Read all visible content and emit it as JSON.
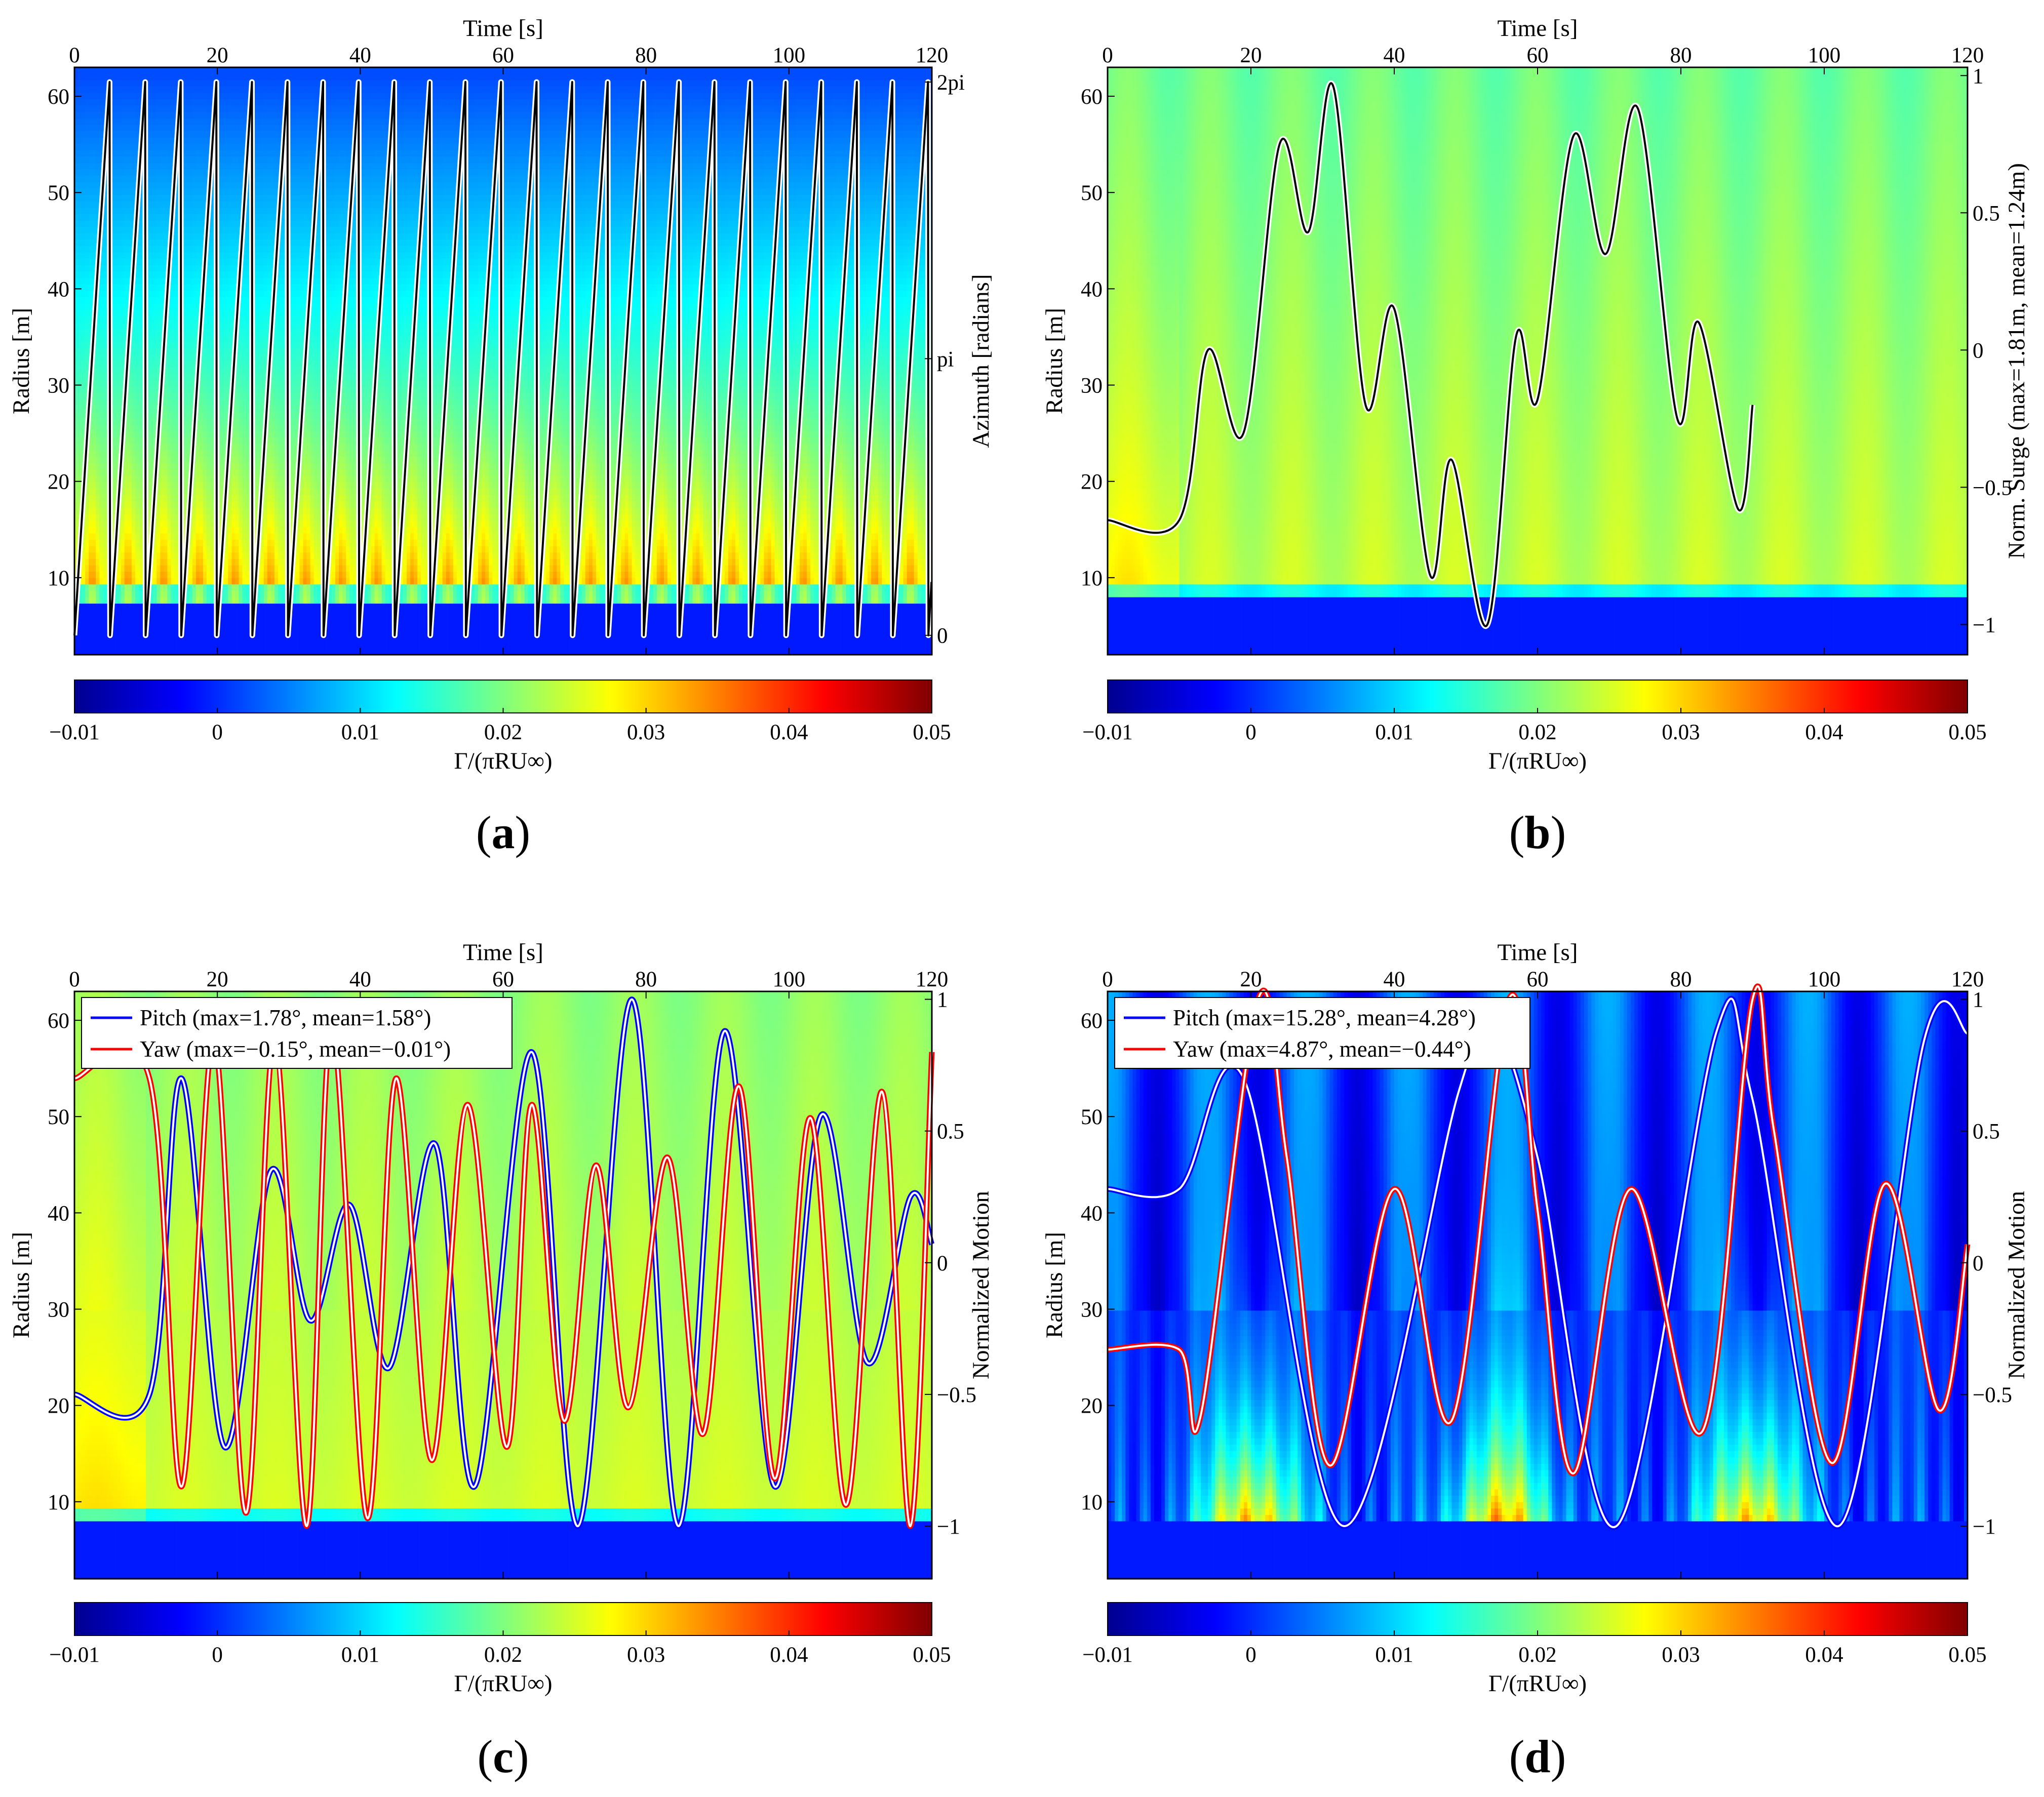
{
  "colormap": [
    "#00008f",
    "#0000ff",
    "#007fff",
    "#00ffff",
    "#7fff7f",
    "#ffff00",
    "#ff7f00",
    "#ff0000",
    "#7f0000"
  ],
  "line_colors": {
    "black": "#000000",
    "white": "#ffffff",
    "blue": "#0000ff",
    "red": "#ff0000"
  },
  "chart_data": [
    {
      "type": "heatmap",
      "panel_label": "(a)",
      "xlabel": "Time [s]",
      "ylabel": "Radius [m]",
      "y2label": "Azimuth [radians]",
      "xlim": [
        0,
        120
      ],
      "ylim": [
        2,
        63
      ],
      "y2lim": [
        -0.22,
        6.45
      ],
      "xticks": [
        0,
        20,
        40,
        60,
        80,
        100,
        120
      ],
      "yticks": [
        10,
        20,
        30,
        40,
        50,
        60
      ],
      "y2ticks": [
        {
          "value": 0,
          "label": "0"
        },
        {
          "value": 3.1416,
          "label": "pi"
        },
        {
          "value": 6.2832,
          "label": "2pi"
        }
      ],
      "field": {
        "pattern": "rotation",
        "root_radius": 8,
        "mean_hub": 0.028,
        "mean_tip": 0.004
      },
      "colorbar": {
        "label": "Γ/(πRU∞)",
        "range": [
          -0.01,
          0.05
        ],
        "ticks": [
          -0.01,
          0,
          0.01,
          0.02,
          0.03,
          0.04,
          0.05
        ]
      },
      "series": [
        {
          "name": "Azimuth",
          "style": "black-white",
          "type": "sawtooth",
          "start": 0,
          "end": 120,
          "period": 4.98,
          "min": 0,
          "max": 6.2832
        }
      ]
    },
    {
      "type": "heatmap",
      "panel_label": "(b)",
      "xlabel": "Time [s]",
      "ylabel": "Radius [m]",
      "y2label": "Norm. Surge (max=1.81m, mean=1.24m)",
      "xlim": [
        0,
        120
      ],
      "ylim": [
        2,
        63
      ],
      "y2lim": [
        -1.11,
        1.03
      ],
      "xticks": [
        0,
        20,
        40,
        60,
        80,
        100,
        120
      ],
      "yticks": [
        10,
        20,
        30,
        40,
        50,
        60
      ],
      "y2ticks": [
        {
          "value": 1,
          "label": "1"
        },
        {
          "value": 0.5,
          "label": "0.5"
        },
        {
          "value": 0,
          "label": "0"
        },
        {
          "value": -0.5,
          "label": "-0.5"
        },
        {
          "value": -1,
          "label": "-1"
        }
      ],
      "field": {
        "pattern": "surge",
        "root_radius": 8.5,
        "mean_hub": 0.024,
        "mean_tip": 0.019
      },
      "colorbar": {
        "label": "Γ/(πRU∞)",
        "range": [
          -0.01,
          0.05
        ],
        "ticks": [
          -0.01,
          0,
          0.01,
          0.02,
          0.03,
          0.04,
          0.05
        ]
      },
      "series": [
        {
          "name": "Surge",
          "style": "black-white",
          "points": [
            [
              0,
              -0.62
            ],
            [
              10,
              -0.62
            ],
            [
              14,
              0
            ],
            [
              19,
              -0.3
            ],
            [
              24,
              0.75
            ],
            [
              28,
              0.43
            ],
            [
              31.5,
              0.96
            ],
            [
              36,
              -0.2
            ],
            [
              40,
              0.15
            ],
            [
              45,
              -0.82
            ],
            [
              48,
              -0.4
            ],
            [
              53,
              -1.0
            ],
            [
              57,
              0.05
            ],
            [
              60,
              -0.18
            ],
            [
              65,
              0.78
            ],
            [
              69.5,
              0.35
            ],
            [
              74,
              0.88
            ],
            [
              79.5,
              -0.25
            ],
            [
              82.5,
              0.1
            ],
            [
              88,
              -0.58
            ],
            [
              90,
              -0.2
            ]
          ]
        }
      ]
    },
    {
      "type": "heatmap",
      "panel_label": "(c)",
      "xlabel": "Time [s]",
      "ylabel": "Radius [m]",
      "y2label": "Normalized Motion",
      "xlim": [
        0,
        120
      ],
      "ylim": [
        2,
        63
      ],
      "y2lim": [
        -1.2,
        1.03
      ],
      "xticks": [
        0,
        20,
        40,
        60,
        80,
        100,
        120
      ],
      "yticks": [
        10,
        20,
        30,
        40,
        50,
        60
      ],
      "y2ticks": [
        {
          "value": 1,
          "label": "1"
        },
        {
          "value": 0.5,
          "label": "0.5"
        },
        {
          "value": 0,
          "label": "0"
        },
        {
          "value": -0.5,
          "label": "-0.5"
        },
        {
          "value": -1,
          "label": "-1"
        }
      ],
      "field": {
        "pattern": "uniform",
        "root_radius": 8.5,
        "mean_hub": 0.025,
        "mean_tip": 0.021
      },
      "colorbar": {
        "label": "Γ/(πRU∞)",
        "range": [
          -0.01,
          0.05
        ],
        "ticks": [
          -0.01,
          0,
          0.01,
          0.02,
          0.03,
          0.04,
          0.05
        ]
      },
      "legend": {
        "location": "top-left",
        "entries": [
          {
            "name": "Pitch (max=1.78°, mean=1.58°)",
            "color": "#0000ff"
          },
          {
            "name": "Yaw (max=−0.15°, mean=−0.01°)",
            "color": "#ff0000"
          }
        ]
      },
      "series": [
        {
          "name": "Pitch",
          "style": "blue-white",
          "points": [
            [
              0,
              -0.5
            ],
            [
              10.5,
              -0.5
            ],
            [
              15,
              0.7
            ],
            [
              21,
              -0.7
            ],
            [
              27.5,
              0.35
            ],
            [
              33,
              -0.22
            ],
            [
              38.5,
              0.22
            ],
            [
              44,
              -0.4
            ],
            [
              50.5,
              0.45
            ],
            [
              56,
              -0.85
            ],
            [
              64,
              0.8
            ],
            [
              70.5,
              -1.0
            ],
            [
              78,
              1.0
            ],
            [
              84.5,
              -1.0
            ],
            [
              91,
              0.88
            ],
            [
              98,
              -0.85
            ],
            [
              104.5,
              0.56
            ],
            [
              111,
              -0.38
            ],
            [
              117,
              0.25
            ],
            [
              120,
              0.07
            ]
          ]
        },
        {
          "name": "Yaw",
          "style": "red-white",
          "points": [
            [
              0,
              0.7
            ],
            [
              10.5,
              0.7
            ],
            [
              15,
              -0.85
            ],
            [
              19.5,
              0.85
            ],
            [
              24,
              -0.95
            ],
            [
              28,
              0.85
            ],
            [
              32.5,
              -1.0
            ],
            [
              36,
              0.9
            ],
            [
              41,
              -0.97
            ],
            [
              45,
              0.7
            ],
            [
              50,
              -0.75
            ],
            [
              55,
              0.6
            ],
            [
              60.5,
              -0.7
            ],
            [
              64,
              0.6
            ],
            [
              68.5,
              -0.6
            ],
            [
              73,
              0.37
            ],
            [
              77.5,
              -0.55
            ],
            [
              83,
              0.4
            ],
            [
              88,
              -0.65
            ],
            [
              93,
              0.67
            ],
            [
              98,
              -0.82
            ],
            [
              103,
              0.55
            ],
            [
              108,
              -0.92
            ],
            [
              113,
              0.65
            ],
            [
              117,
              -1.0
            ],
            [
              120,
              0.8
            ]
          ]
        }
      ]
    },
    {
      "type": "heatmap",
      "panel_label": "(d)",
      "xlabel": "Time [s]",
      "ylabel": "Radius [m]",
      "y2label": "Normalized Motion",
      "xlim": [
        0,
        120
      ],
      "ylim": [
        2,
        63
      ],
      "y2lim": [
        -1.2,
        1.03
      ],
      "xticks": [
        0,
        20,
        40,
        60,
        80,
        100,
        120
      ],
      "yticks": [
        10,
        20,
        30,
        40,
        50,
        60
      ],
      "y2ticks": [
        {
          "value": 1,
          "label": "1"
        },
        {
          "value": 0.5,
          "label": "0.5"
        },
        {
          "value": 0,
          "label": "0"
        },
        {
          "value": -0.5,
          "label": "-0.5"
        },
        {
          "value": -1,
          "label": "-1"
        }
      ],
      "field": {
        "pattern": "gust",
        "root_radius": 8.5,
        "mean_hub": 0.015,
        "mean_tip": 0.002
      },
      "colorbar": {
        "label": "Γ/(πRU∞)",
        "range": [
          -0.01,
          0.05
        ],
        "ticks": [
          -0.01,
          0,
          0.01,
          0.02,
          0.03,
          0.04,
          0.05
        ]
      },
      "legend": {
        "location": "top-left",
        "entries": [
          {
            "name": "Pitch (max=15.28°, mean=4.28°)",
            "color": "#0000ff"
          },
          {
            "name": "Yaw (max=4.87°, mean=−0.44°)",
            "color": "#ff0000"
          }
        ]
      },
      "series": [
        {
          "name": "Pitch",
          "style": "blue-white",
          "points": [
            [
              0,
              0.28
            ],
            [
              10,
              0.28
            ],
            [
              19,
              0.7
            ],
            [
              33,
              -1.0
            ],
            [
              49,
              0.65
            ],
            [
              54,
              0.88
            ],
            [
              60,
              0.4
            ],
            [
              71,
              -1.0
            ],
            [
              85,
              0.88
            ],
            [
              90,
              0.62
            ],
            [
              102,
              -1.0
            ],
            [
              114,
              0.85
            ],
            [
              120,
              0.87
            ]
          ]
        },
        {
          "name": "Yaw",
          "style": "red-white",
          "points": [
            [
              0,
              -0.33
            ],
            [
              10,
              -0.33
            ],
            [
              13,
              -0.58
            ],
            [
              21,
              1.0
            ],
            [
              25,
              0.4
            ],
            [
              31,
              -0.77
            ],
            [
              40,
              0.28
            ],
            [
              48,
              -0.6
            ],
            [
              56,
              1.0
            ],
            [
              60,
              0.2
            ],
            [
              65,
              -0.8
            ],
            [
              73,
              0.28
            ],
            [
              83,
              -0.64
            ],
            [
              90,
              1.0
            ],
            [
              93,
              0.5
            ],
            [
              101,
              -0.76
            ],
            [
              108.5,
              0.3
            ],
            [
              116,
              -0.56
            ],
            [
              120,
              0.07
            ]
          ]
        }
      ]
    }
  ]
}
